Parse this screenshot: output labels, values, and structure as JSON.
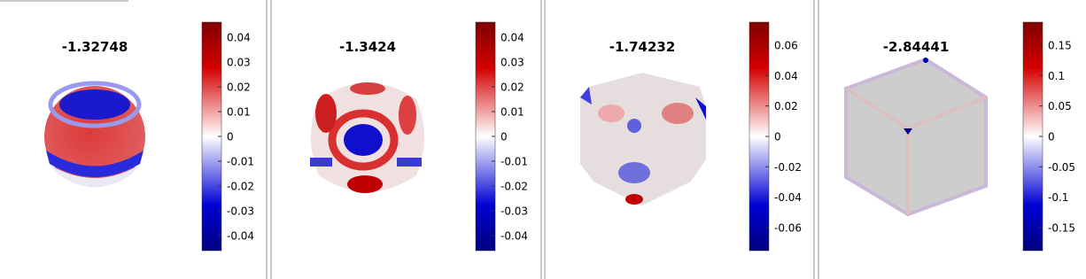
{
  "panels": [
    {
      "title": "-1.32748",
      "colorbar": {
        "ticks": [
          0.04,
          0.03,
          0.02,
          0.01,
          0,
          -0.01,
          -0.02,
          -0.03,
          -0.04
        ]
      }
    },
    {
      "title": "-1.3424",
      "colorbar": {
        "ticks": [
          0.04,
          0.03,
          0.02,
          0.01,
          0,
          -0.01,
          -0.02,
          -0.03,
          -0.04
        ]
      }
    },
    {
      "title": "-1.74232",
      "colorbar": {
        "ticks": [
          0.06,
          0.04,
          0.02,
          0,
          -0.02,
          -0.04,
          -0.06
        ]
      }
    },
    {
      "title": "-2.84441",
      "colorbar": {
        "ticks": [
          0.15,
          0.1,
          0.05,
          0,
          -0.05,
          -0.1,
          -0.15
        ]
      }
    }
  ]
}
